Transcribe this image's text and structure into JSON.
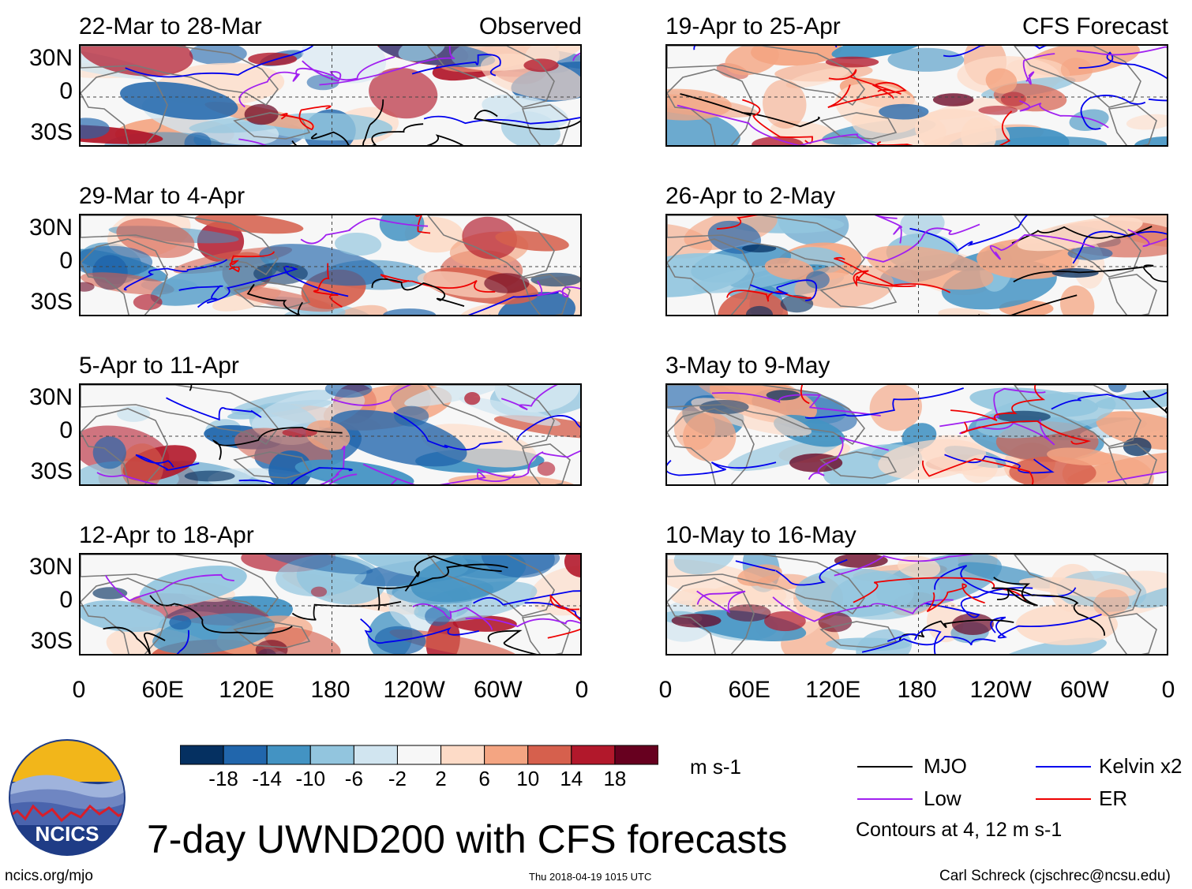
{
  "chart_data": {
    "type": "heatmap",
    "title": "7-day UWND200 with CFS forecasts",
    "variable": "UWND200",
    "units": "m s-1",
    "columns": [
      {
        "header": "Observed",
        "panels": [
          {
            "label": "22-Mar to 28-Mar"
          },
          {
            "label": "29-Mar to 4-Apr"
          },
          {
            "label": "5-Apr to 11-Apr"
          },
          {
            "label": "12-Apr to 18-Apr"
          }
        ]
      },
      {
        "header": "CFS Forecast",
        "panels": [
          {
            "label": "19-Apr to 25-Apr"
          },
          {
            "label": "26-Apr to 2-May"
          },
          {
            "label": "3-May to 9-May"
          },
          {
            "label": "10-May to 16-May"
          }
        ]
      }
    ],
    "y_ticks": [
      "30N",
      "0",
      "30S"
    ],
    "x_ticks": [
      "0",
      "60E",
      "120E",
      "180",
      "120W",
      "60W",
      "0"
    ],
    "colorbar": {
      "levels": [
        "-18",
        "-14",
        "-10",
        "-6",
        "-2",
        "2",
        "6",
        "10",
        "14",
        "18"
      ],
      "colors": [
        "#053061",
        "#2166ac",
        "#4393c3",
        "#92c5de",
        "#d1e5f0",
        "#f7f7f7",
        "#fddbc7",
        "#f4a582",
        "#d6604d",
        "#b2182b",
        "#67001f"
      ]
    },
    "legend": [
      {
        "name": "MJO",
        "color": "#000000"
      },
      {
        "name": "Kelvin x2",
        "color": "#0000ee"
      },
      {
        "name": "Low",
        "color": "#a020f0"
      },
      {
        "name": "ER",
        "color": "#ee0000"
      }
    ],
    "contour_note": "Contours at 4, 12 m s-1"
  },
  "footer": {
    "logo_text": "NCICS",
    "website": "ncics.org/mjo",
    "timestamp": "Thu 2018-04-19 1015 UTC",
    "author": "Carl Schreck (cjschrec@ncsu.edu)"
  }
}
